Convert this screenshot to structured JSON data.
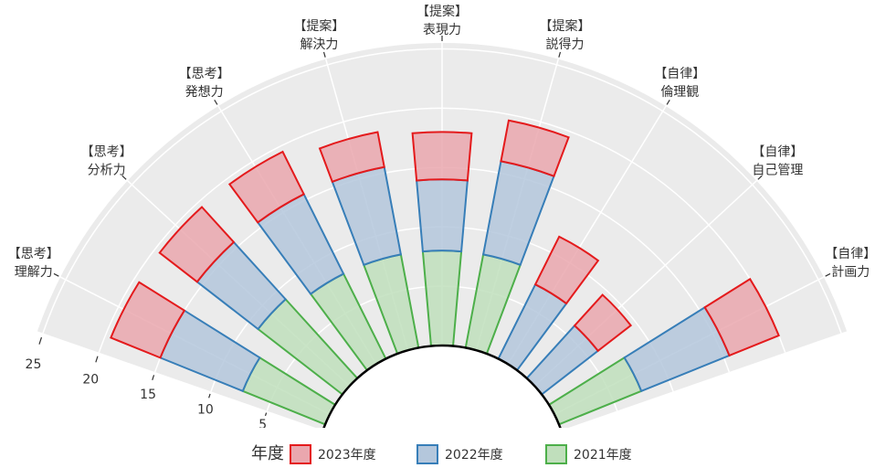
{
  "chart_data": {
    "type": "polar-stacked-bar",
    "categories": [
      "【思考】\n理解力",
      "【思考】\n分析力",
      "【思考】\n発想力",
      "【提案】\n解決力",
      "【提案】\n表現力",
      "【提案】\n説得力",
      "【自律】\n倫理観",
      "【自律】\n自己管理",
      "【自律】\n計画力"
    ],
    "legend_title": "年度",
    "series": [
      {
        "name": "2023年度",
        "color": "#e41a1c",
        "fill": "#eaa7ae",
        "values": [
          4.5,
          4,
          4,
          3,
          4,
          3.5,
          4.5,
          3.5,
          4.5
        ]
      },
      {
        "name": "2022年度",
        "color": "#377eb8",
        "fill": "#b4c7dc",
        "values": [
          7.5,
          6.5,
          7.5,
          7.5,
          6,
          8,
          7,
          6,
          8
        ]
      },
      {
        "name": "2021年度",
        "color": "#4daf4a",
        "fill": "#c0dfbc",
        "values": [
          7.5,
          9,
          8,
          8,
          8,
          8,
          0,
          0,
          7.5
        ]
      }
    ],
    "ylim": [
      0,
      25.5
    ],
    "yticks": [
      5,
      10,
      15,
      20,
      25
    ],
    "grid": true
  }
}
